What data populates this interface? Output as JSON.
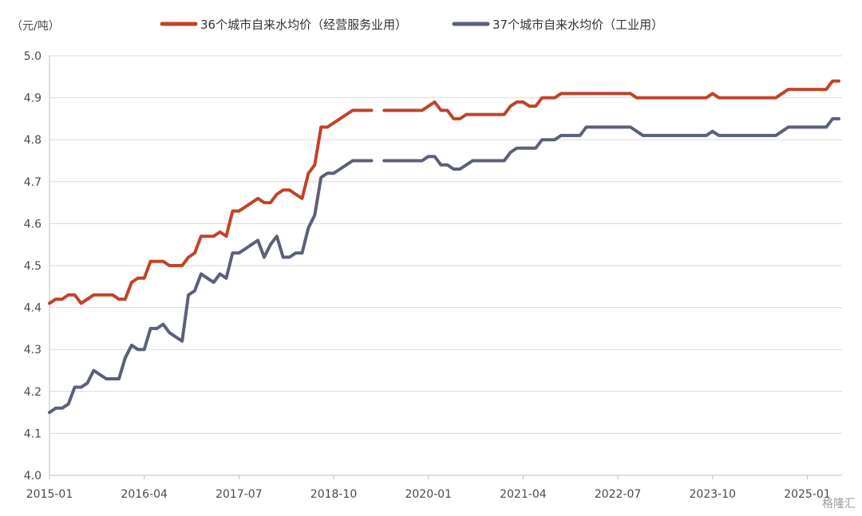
{
  "chart_data": {
    "type": "line",
    "unit_label": "（元/吨）",
    "ylim": [
      4.0,
      5.0
    ],
    "yticks": [
      "4.0",
      "4.1",
      "4.2",
      "4.3",
      "4.4",
      "4.5",
      "4.6",
      "4.7",
      "4.8",
      "4.9",
      "5.0"
    ],
    "xticks": [
      "2015-01",
      "2016-04",
      "2017-07",
      "2018-10",
      "2020-01",
      "2021-04",
      "2022-07",
      "2023-10",
      "2025-01"
    ],
    "x_start": "2015-01",
    "x_end": "2025-06",
    "grid": true,
    "legend_position": "top",
    "gaps": [
      [
        "2018-12",
        "2019-04"
      ]
    ],
    "series": [
      {
        "name": "36个城市自来水均价（经营服务业用）",
        "color": "#c0432a",
        "points": [
          [
            "2015-01",
            4.41
          ],
          [
            "2015-02",
            4.42
          ],
          [
            "2015-03",
            4.42
          ],
          [
            "2015-04",
            4.43
          ],
          [
            "2015-05",
            4.43
          ],
          [
            "2015-06",
            4.41
          ],
          [
            "2015-07",
            4.42
          ],
          [
            "2015-08",
            4.43
          ],
          [
            "2015-09",
            4.43
          ],
          [
            "2015-10",
            4.43
          ],
          [
            "2015-11",
            4.43
          ],
          [
            "2015-12",
            4.42
          ],
          [
            "2016-01",
            4.42
          ],
          [
            "2016-02",
            4.46
          ],
          [
            "2016-03",
            4.47
          ],
          [
            "2016-04",
            4.47
          ],
          [
            "2016-05",
            4.51
          ],
          [
            "2016-06",
            4.51
          ],
          [
            "2016-07",
            4.51
          ],
          [
            "2016-08",
            4.5
          ],
          [
            "2016-09",
            4.5
          ],
          [
            "2016-10",
            4.5
          ],
          [
            "2016-11",
            4.52
          ],
          [
            "2016-12",
            4.53
          ],
          [
            "2017-01",
            4.57
          ],
          [
            "2017-02",
            4.57
          ],
          [
            "2017-03",
            4.57
          ],
          [
            "2017-04",
            4.58
          ],
          [
            "2017-05",
            4.57
          ],
          [
            "2017-06",
            4.63
          ],
          [
            "2017-07",
            4.63
          ],
          [
            "2017-08",
            4.64
          ],
          [
            "2017-09",
            4.65
          ],
          [
            "2017-10",
            4.66
          ],
          [
            "2017-11",
            4.65
          ],
          [
            "2017-12",
            4.65
          ],
          [
            "2018-01",
            4.67
          ],
          [
            "2018-02",
            4.68
          ],
          [
            "2018-03",
            4.68
          ],
          [
            "2018-04",
            4.67
          ],
          [
            "2018-05",
            4.66
          ],
          [
            "2018-06",
            4.72
          ],
          [
            "2018-07",
            4.74
          ],
          [
            "2018-08",
            4.83
          ],
          [
            "2018-09",
            4.83
          ],
          [
            "2018-10",
            4.84
          ],
          [
            "2018-11",
            4.85
          ],
          [
            "2018-12",
            4.86
          ],
          [
            "2019-01",
            4.87
          ],
          [
            "2019-02",
            4.87
          ],
          [
            "2019-03",
            4.87
          ],
          [
            "2019-04",
            4.87
          ],
          [
            "2019-06",
            4.87
          ],
          [
            "2019-07",
            4.87
          ],
          [
            "2019-08",
            4.87
          ],
          [
            "2019-09",
            4.87
          ],
          [
            "2019-10",
            4.87
          ],
          [
            "2019-11",
            4.87
          ],
          [
            "2019-12",
            4.87
          ],
          [
            "2020-01",
            4.88
          ],
          [
            "2020-02",
            4.89
          ],
          [
            "2020-03",
            4.87
          ],
          [
            "2020-04",
            4.87
          ],
          [
            "2020-05",
            4.85
          ],
          [
            "2020-06",
            4.85
          ],
          [
            "2020-07",
            4.86
          ],
          [
            "2020-08",
            4.86
          ],
          [
            "2020-09",
            4.86
          ],
          [
            "2020-10",
            4.86
          ],
          [
            "2020-11",
            4.86
          ],
          [
            "2020-12",
            4.86
          ],
          [
            "2021-01",
            4.86
          ],
          [
            "2021-02",
            4.88
          ],
          [
            "2021-03",
            4.89
          ],
          [
            "2021-04",
            4.89
          ],
          [
            "2021-05",
            4.88
          ],
          [
            "2021-06",
            4.88
          ],
          [
            "2021-07",
            4.9
          ],
          [
            "2021-08",
            4.9
          ],
          [
            "2021-09",
            4.9
          ],
          [
            "2021-10",
            4.91
          ],
          [
            "2021-11",
            4.91
          ],
          [
            "2021-12",
            4.91
          ],
          [
            "2022-01",
            4.91
          ],
          [
            "2022-02",
            4.91
          ],
          [
            "2022-03",
            4.91
          ],
          [
            "2022-04",
            4.91
          ],
          [
            "2022-05",
            4.91
          ],
          [
            "2022-06",
            4.91
          ],
          [
            "2022-07",
            4.91
          ],
          [
            "2022-08",
            4.91
          ],
          [
            "2022-09",
            4.91
          ],
          [
            "2022-10",
            4.9
          ],
          [
            "2022-11",
            4.9
          ],
          [
            "2022-12",
            4.9
          ],
          [
            "2023-01",
            4.9
          ],
          [
            "2023-02",
            4.9
          ],
          [
            "2023-03",
            4.9
          ],
          [
            "2023-04",
            4.9
          ],
          [
            "2023-05",
            4.9
          ],
          [
            "2023-06",
            4.9
          ],
          [
            "2023-07",
            4.9
          ],
          [
            "2023-08",
            4.9
          ],
          [
            "2023-09",
            4.9
          ],
          [
            "2023-10",
            4.91
          ],
          [
            "2023-11",
            4.9
          ],
          [
            "2023-12",
            4.9
          ],
          [
            "2024-01",
            4.9
          ],
          [
            "2024-02",
            4.9
          ],
          [
            "2024-03",
            4.9
          ],
          [
            "2024-04",
            4.9
          ],
          [
            "2024-05",
            4.9
          ],
          [
            "2024-06",
            4.9
          ],
          [
            "2024-07",
            4.9
          ],
          [
            "2024-08",
            4.9
          ],
          [
            "2024-09",
            4.91
          ],
          [
            "2024-10",
            4.92
          ],
          [
            "2024-11",
            4.92
          ],
          [
            "2024-12",
            4.92
          ],
          [
            "2025-01",
            4.92
          ],
          [
            "2025-02",
            4.92
          ],
          [
            "2025-03",
            4.92
          ],
          [
            "2025-04",
            4.92
          ],
          [
            "2025-05",
            4.94
          ],
          [
            "2025-06",
            4.94
          ]
        ]
      },
      {
        "name": "37个城市自来水均价（工业用）",
        "color": "#5a6178",
        "points": [
          [
            "2015-01",
            4.15
          ],
          [
            "2015-02",
            4.16
          ],
          [
            "2015-03",
            4.16
          ],
          [
            "2015-04",
            4.17
          ],
          [
            "2015-05",
            4.21
          ],
          [
            "2015-06",
            4.21
          ],
          [
            "2015-07",
            4.22
          ],
          [
            "2015-08",
            4.25
          ],
          [
            "2015-09",
            4.24
          ],
          [
            "2015-10",
            4.23
          ],
          [
            "2015-11",
            4.23
          ],
          [
            "2015-12",
            4.23
          ],
          [
            "2016-01",
            4.28
          ],
          [
            "2016-02",
            4.31
          ],
          [
            "2016-03",
            4.3
          ],
          [
            "2016-04",
            4.3
          ],
          [
            "2016-05",
            4.35
          ],
          [
            "2016-06",
            4.35
          ],
          [
            "2016-07",
            4.36
          ],
          [
            "2016-08",
            4.34
          ],
          [
            "2016-09",
            4.33
          ],
          [
            "2016-10",
            4.32
          ],
          [
            "2016-11",
            4.43
          ],
          [
            "2016-12",
            4.44
          ],
          [
            "2017-01",
            4.48
          ],
          [
            "2017-02",
            4.47
          ],
          [
            "2017-03",
            4.46
          ],
          [
            "2017-04",
            4.48
          ],
          [
            "2017-05",
            4.47
          ],
          [
            "2017-06",
            4.53
          ],
          [
            "2017-07",
            4.53
          ],
          [
            "2017-08",
            4.54
          ],
          [
            "2017-09",
            4.55
          ],
          [
            "2017-10",
            4.56
          ],
          [
            "2017-11",
            4.52
          ],
          [
            "2017-12",
            4.55
          ],
          [
            "2018-01",
            4.57
          ],
          [
            "2018-02",
            4.52
          ],
          [
            "2018-03",
            4.52
          ],
          [
            "2018-04",
            4.53
          ],
          [
            "2018-05",
            4.53
          ],
          [
            "2018-06",
            4.59
          ],
          [
            "2018-07",
            4.62
          ],
          [
            "2018-08",
            4.71
          ],
          [
            "2018-09",
            4.72
          ],
          [
            "2018-10",
            4.72
          ],
          [
            "2018-11",
            4.73
          ],
          [
            "2018-12",
            4.74
          ],
          [
            "2019-01",
            4.75
          ],
          [
            "2019-02",
            4.75
          ],
          [
            "2019-03",
            4.75
          ],
          [
            "2019-04",
            4.75
          ],
          [
            "2019-06",
            4.75
          ],
          [
            "2019-07",
            4.75
          ],
          [
            "2019-08",
            4.75
          ],
          [
            "2019-09",
            4.75
          ],
          [
            "2019-10",
            4.75
          ],
          [
            "2019-11",
            4.75
          ],
          [
            "2019-12",
            4.75
          ],
          [
            "2020-01",
            4.76
          ],
          [
            "2020-02",
            4.76
          ],
          [
            "2020-03",
            4.74
          ],
          [
            "2020-04",
            4.74
          ],
          [
            "2020-05",
            4.73
          ],
          [
            "2020-06",
            4.73
          ],
          [
            "2020-07",
            4.74
          ],
          [
            "2020-08",
            4.75
          ],
          [
            "2020-09",
            4.75
          ],
          [
            "2020-10",
            4.75
          ],
          [
            "2020-11",
            4.75
          ],
          [
            "2020-12",
            4.75
          ],
          [
            "2021-01",
            4.75
          ],
          [
            "2021-02",
            4.77
          ],
          [
            "2021-03",
            4.78
          ],
          [
            "2021-04",
            4.78
          ],
          [
            "2021-05",
            4.78
          ],
          [
            "2021-06",
            4.78
          ],
          [
            "2021-07",
            4.8
          ],
          [
            "2021-08",
            4.8
          ],
          [
            "2021-09",
            4.8
          ],
          [
            "2021-10",
            4.81
          ],
          [
            "2021-11",
            4.81
          ],
          [
            "2021-12",
            4.81
          ],
          [
            "2022-01",
            4.81
          ],
          [
            "2022-02",
            4.83
          ],
          [
            "2022-03",
            4.83
          ],
          [
            "2022-04",
            4.83
          ],
          [
            "2022-05",
            4.83
          ],
          [
            "2022-06",
            4.83
          ],
          [
            "2022-07",
            4.83
          ],
          [
            "2022-08",
            4.83
          ],
          [
            "2022-09",
            4.83
          ],
          [
            "2022-10",
            4.82
          ],
          [
            "2022-11",
            4.81
          ],
          [
            "2022-12",
            4.81
          ],
          [
            "2023-01",
            4.81
          ],
          [
            "2023-02",
            4.81
          ],
          [
            "2023-03",
            4.81
          ],
          [
            "2023-04",
            4.81
          ],
          [
            "2023-05",
            4.81
          ],
          [
            "2023-06",
            4.81
          ],
          [
            "2023-07",
            4.81
          ],
          [
            "2023-08",
            4.81
          ],
          [
            "2023-09",
            4.81
          ],
          [
            "2023-10",
            4.82
          ],
          [
            "2023-11",
            4.81
          ],
          [
            "2023-12",
            4.81
          ],
          [
            "2024-01",
            4.81
          ],
          [
            "2024-02",
            4.81
          ],
          [
            "2024-03",
            4.81
          ],
          [
            "2024-04",
            4.81
          ],
          [
            "2024-05",
            4.81
          ],
          [
            "2024-06",
            4.81
          ],
          [
            "2024-07",
            4.81
          ],
          [
            "2024-08",
            4.81
          ],
          [
            "2024-09",
            4.82
          ],
          [
            "2024-10",
            4.83
          ],
          [
            "2024-11",
            4.83
          ],
          [
            "2024-12",
            4.83
          ],
          [
            "2025-01",
            4.83
          ],
          [
            "2025-02",
            4.83
          ],
          [
            "2025-03",
            4.83
          ],
          [
            "2025-04",
            4.83
          ],
          [
            "2025-05",
            4.85
          ],
          [
            "2025-06",
            4.85
          ]
        ]
      }
    ]
  },
  "watermark": "格隆汇"
}
